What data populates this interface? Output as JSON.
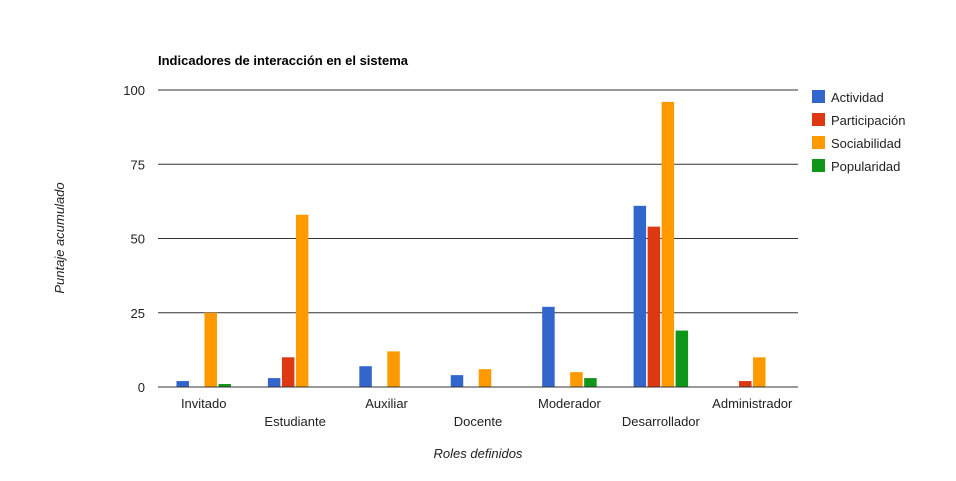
{
  "chart_data": {
    "type": "bar",
    "title": "Indicadores de interacción en el sistema",
    "xlabel": "Roles definidos",
    "ylabel": "Puntaje acumulado",
    "ylim": [
      0,
      100
    ],
    "yticks": [
      0,
      25,
      50,
      75,
      100
    ],
    "grid": true,
    "legend_position": "right",
    "categories": [
      "Invitado",
      "Estudiante",
      "Auxiliar",
      "Docente",
      "Moderador",
      "Desarrollador",
      "Administrador"
    ],
    "series": [
      {
        "name": "Actividad",
        "color": "#3366cc",
        "values": [
          2,
          3,
          7,
          4,
          27,
          61,
          0
        ]
      },
      {
        "name": "Participación",
        "color": "#dc3912",
        "values": [
          0,
          10,
          0,
          0,
          0,
          54,
          2
        ]
      },
      {
        "name": "Sociabilidad",
        "color": "#ff9900",
        "values": [
          25,
          58,
          12,
          6,
          5,
          96,
          10
        ]
      },
      {
        "name": "Popularidad",
        "color": "#109618",
        "values": [
          1,
          0,
          0,
          0,
          3,
          19,
          0
        ]
      }
    ]
  }
}
